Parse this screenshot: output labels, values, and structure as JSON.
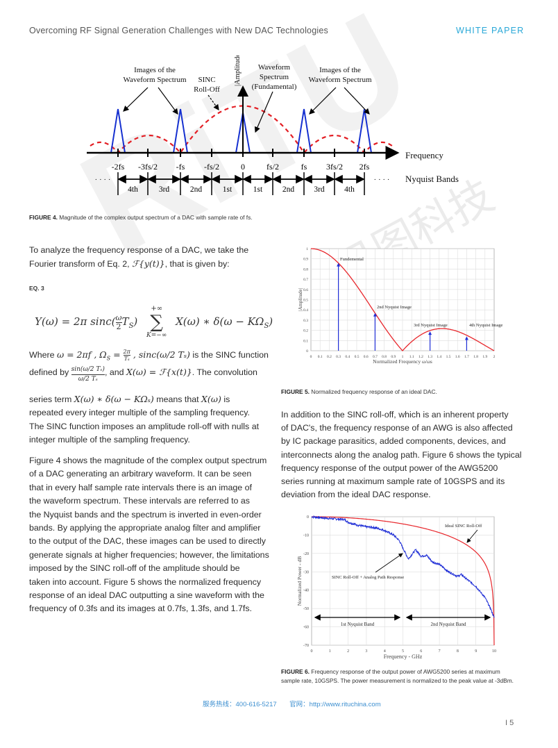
{
  "header": {
    "title": "Overcoming RF Signal Generation Challenges with New DAC Technologies",
    "section": "WHITE PAPER"
  },
  "watermark": {
    "logo": "RiTU",
    "cn": "日图科技"
  },
  "figure4": {
    "labels": {
      "images_l1": "Images of the",
      "images_l2": "Waveform Spectrum",
      "sinc_l1": "SINC",
      "sinc_l2": "Roll-Off",
      "amplitude": "|Amplitude|",
      "wave_l1": "Waveform",
      "wave_l2": "Spectrum",
      "wave_l3": "(Fundamental)",
      "frequency": "Frequency",
      "nyquist": "Nyquist Bands",
      "dots": "· · · ·"
    },
    "ticks": [
      "-2fs",
      "-3fs/2",
      "-fs",
      "-fs/2",
      "0",
      "fs/2",
      "fs",
      "3fs/2",
      "2fs"
    ],
    "bands": [
      "4th",
      "3rd",
      "2nd",
      "1st",
      "1st",
      "2nd",
      "3rd",
      "4th"
    ],
    "caption_label": "FIGURE 4.",
    "caption": "Magnitude of the complex output spectrum of a DAC with sample rate of fs."
  },
  "text": {
    "p1_l1": "To analyze the frequency response of a DAC, we take the",
    "p1_l2a": "Fourier transform of  Eq. 2, ",
    "p1_l2m": "ℱ{y(t)}",
    "p1_l2b": ", that is given by:",
    "eq_label": "EQ. 3",
    "eq3": "Y(ω) = 2π sinc(ω/2 T_S) Σ X(ω) ∗ δ(ω − KΩ_S)",
    "eq3_left": "Y(ω) = 2π sinc(",
    "eq3_frac_n": "ω",
    "eq3_frac_d": "2",
    "eq3_ts": "T",
    "eq3_s": "S",
    "eq3_sum_top": "+∞",
    "eq3_sum_bot": "K=−∞",
    "eq3_sum": "∑",
    "eq3_right": "X(ω) ∗ δ(ω − KΩ",
    "eq3_close": ")",
    "w1a": "Where ",
    "w1m": "ω = 2πf , Ω",
    "w1s": "S",
    "w1eq": " = ",
    "w1fn": "2π",
    "w1fd": "Tₛ",
    "w1m2": " , sinc(ω/2 Tₛ)",
    "w1b": " is the SINC function",
    "w2a": "defined by ",
    "w2n": "sin(ω/2 Tₛ)",
    "w2d": "ω/2 Tₛ",
    "w2b": ", and ",
    "w2m": "X(ω) = ℱ{x(t)}",
    "w2c": ". The convolution",
    "w3a": "series term ",
    "w3m": "X(ω) ∗ δ(ω − KΩₛ)",
    "w3b": " means that ",
    "w3m2": "X(ω)",
    "w3c": " is",
    "w4": "repeated every integer multiple of the sampling frequency.",
    "w5": "The SINC function imposes an amplitude roll-off with nulls at",
    "w6": "integer multiple of the sampling frequency.",
    "p2": [
      "Figure 4 shows the magnitude of the complex output spectrum",
      "of a DAC generating an arbitrary waveform. It can be seen",
      "that in every half sample rate intervals there is an image of",
      "the waveform spectrum. These intervals are referred to as",
      "the Nyquist bands and the spectrum is inverted in even-order",
      "bands. By applying the appropriate analog filter and amplifier",
      "to the output of the DAC, these images can be used to directly",
      "generate signals at higher frequencies; however, the limitations",
      "imposed by the SINC roll-off of the amplitude should be",
      "taken into account. Figure 5 shows the normalized frequency",
      "response of an ideal DAC outputting a sine waveform with the",
      "frequency of 0.3fs and its images at 0.7fs, 1.3fs, and 1.7fs."
    ],
    "p3": [
      "In addition to the SINC roll-off, which is an inherent property",
      "of DAC's, the frequency response of an AWG is also affected",
      "by IC package parasitics, added components, devices, and",
      "interconnects along the analog path. Figure 6 shows the typical",
      "frequency response of the output power of the AWG5200",
      "series running at maximum sample rate of 10GSPS and its",
      "deviation from the ideal DAC response."
    ]
  },
  "chart_data": [
    {
      "type": "line",
      "id": "figure5",
      "xlabel": "Normalized Frequency ω/ωs",
      "ylabel": "|Amplitude|",
      "xlim": [
        0,
        2
      ],
      "ylim": [
        0,
        1
      ],
      "grid": true,
      "xticks": [
        "0",
        "0.1",
        "0.2",
        "0.3",
        "0.4",
        "0.5",
        "0.6",
        "0.7",
        "0.8",
        "0.9",
        "1",
        "1.1",
        "1.2",
        "1.3",
        "1.4",
        "1.5",
        "1.6",
        "1.7",
        "1.8",
        "1.9",
        "2"
      ],
      "yticks": [
        "0",
        "0.1",
        "0.2",
        "0.3",
        "0.4",
        "0.5",
        "0.6",
        "0.7",
        "0.8",
        "0.9",
        "1"
      ],
      "curve": "|sinc(ω/ωs)|",
      "colors": {
        "curve": "#e8262b",
        "stems": "#1f2ed6"
      },
      "stems": [
        {
          "x": 0.3,
          "y": 0.86,
          "label": "Fundemental"
        },
        {
          "x": 0.7,
          "y": 0.37,
          "label": "2nd Nyquist Image"
        },
        {
          "x": 1.3,
          "y": 0.19,
          "label": "3rd Nyquist Image"
        },
        {
          "x": 1.7,
          "y": 0.14,
          "label": "4th Nyquist Image"
        }
      ],
      "caption_label": "FIGURE 5.",
      "caption": "Normalized frequency response of an ideal DAC."
    },
    {
      "type": "line",
      "id": "figure6",
      "xlabel": "Frequency - GHz",
      "ylabel": "Normalized Power - dB",
      "xlim": [
        0,
        10
      ],
      "ylim": [
        -70,
        0
      ],
      "grid": true,
      "xticks": [
        "0",
        "1",
        "2",
        "3",
        "4",
        "5",
        "6",
        "7",
        "8",
        "9",
        "10"
      ],
      "yticks": [
        "0",
        "-10",
        "-20",
        "-30",
        "-40",
        "-50",
        "-60",
        "-70"
      ],
      "series": [
        {
          "name": "Ideal SINC Roll-Off",
          "color": "#e8262b",
          "x": [
            0,
            1,
            2,
            3,
            4,
            5,
            6,
            7,
            8,
            9,
            9.5,
            9.8,
            10
          ],
          "y": [
            0,
            -0.1,
            -0.6,
            -1.3,
            -2.4,
            -3.9,
            -6,
            -8.9,
            -13.2,
            -20.5,
            -26.7,
            -34.5,
            -70
          ]
        },
        {
          "name": "SINC Roll-Off + Analog Path Response",
          "color": "#1f2ed6",
          "x": [
            0,
            0.5,
            1,
            1.5,
            1.8,
            2,
            2.5,
            3,
            3.5,
            4,
            4.5,
            4.8,
            5,
            5.3,
            5.7,
            6,
            6.3,
            6.6,
            7,
            7.5,
            8,
            8.2,
            8.5,
            9,
            9.5,
            9.8,
            10
          ],
          "y": [
            0,
            -0.5,
            -1,
            -1.3,
            -1.5,
            -3,
            -4.5,
            -5.5,
            -6,
            -7.5,
            -10,
            -13,
            -17,
            -23,
            -18,
            -21.5,
            -21,
            -24.5,
            -26,
            -30,
            -32.5,
            -31.5,
            -34,
            -38,
            -44,
            -50,
            -55
          ]
        }
      ],
      "bands": [
        "1st Nyquist Band",
        "2nd Nyquist Band"
      ],
      "caption_label": "FIGURE 6.",
      "caption": "Frequency response of the output power of AWG5200 series at maximum sample rate, 10GSPS. The power measurement is normalized to the peak value at -3dBm."
    }
  ],
  "footer": {
    "hotline": "服务热线：400-616-5217",
    "site": "官网：http://www.rituchina.com",
    "page": "I 5"
  }
}
